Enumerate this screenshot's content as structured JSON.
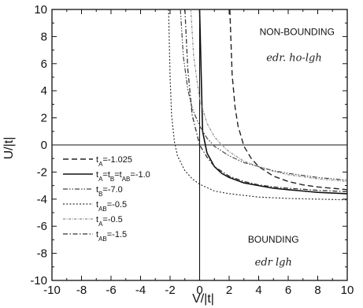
{
  "chart_data": {
    "type": "line",
    "xlabel": "V/|t|",
    "ylabel": "U/|t|",
    "xlim": [
      -10,
      10
    ],
    "ylim": [
      -10,
      10
    ],
    "xticks": [
      "-10",
      "-8",
      "-6",
      "-4",
      "-2",
      "0",
      "2",
      "4",
      "6",
      "8",
      "10"
    ],
    "yticks": [
      "10",
      "8",
      "6",
      "4",
      "2",
      "0",
      "-2",
      "-4",
      "-6",
      "-8",
      "-10"
    ],
    "grid": false,
    "legend_position": "left-middle",
    "annotations": [
      {
        "text": "NON-BOUNDING",
        "x": 6.6,
        "y": 8.1
      },
      {
        "text": "BOUNDING",
        "x": 5.0,
        "y": -7.2
      }
    ],
    "handwriting": [
      {
        "text": "edr. ho-lgh",
        "x": 6.4,
        "y": 6.2
      },
      {
        "text": "edr lgh",
        "x": 5.0,
        "y": -8.9
      }
    ],
    "series": [
      {
        "name": "t_A=-1.025",
        "style": "dashed",
        "x": [
          2.05,
          2.2,
          2.4,
          2.6,
          3.0,
          3.5,
          4.0,
          5.0,
          6.0,
          7.0,
          8.0,
          9.0,
          10.0
        ],
        "y": [
          10.0,
          5.2,
          2.8,
          1.4,
          -0.1,
          -1.0,
          -1.6,
          -2.3,
          -2.7,
          -2.95,
          -3.1,
          -3.2,
          -3.3
        ]
      },
      {
        "name": "t_A=t_B=t_AB=-1.0",
        "style": "solid",
        "x": [
          0.0,
          0.2,
          0.5,
          1.0,
          1.5,
          2.0,
          3.0,
          4.0,
          5.0,
          6.0,
          7.0,
          8.0,
          9.0,
          10.0
        ],
        "y": [
          10.0,
          1.0,
          -0.6,
          -1.6,
          -2.1,
          -2.4,
          -2.8,
          -3.0,
          -3.2,
          -3.3,
          -3.4,
          -3.5,
          -3.55,
          -3.6
        ]
      },
      {
        "name": "t_B=-7.0",
        "style": "dash-dot-dot",
        "x": [
          -1.3,
          -1.1,
          -0.8,
          -0.5,
          0.0,
          0.5,
          1.0,
          2.0,
          3.0,
          4.0,
          5.0,
          6.0,
          8.0,
          10.0
        ],
        "y": [
          10.0,
          6.5,
          4.1,
          2.7,
          1.4,
          0.5,
          -0.1,
          -0.8,
          -1.3,
          -1.6,
          -1.9,
          -2.1,
          -2.4,
          -2.6
        ]
      },
      {
        "name": "t_AB=-0.5",
        "style": "dotted",
        "x": [
          -2.1,
          -2.0,
          -1.9,
          -1.7,
          -1.5,
          -1.0,
          -0.5,
          0.0,
          1.0,
          2.0,
          4.0,
          6.0,
          8.0,
          10.0
        ],
        "y": [
          10.0,
          5.0,
          2.2,
          0.2,
          -0.8,
          -1.9,
          -2.5,
          -2.9,
          -3.4,
          -3.6,
          -3.85,
          -3.95,
          -4.0,
          -4.05
        ]
      },
      {
        "name": "t_A=-0.5",
        "style": "dash-dot-dense",
        "x": [
          -0.6,
          -0.4,
          0.0,
          0.5,
          1.0,
          1.5,
          2.0,
          3.0,
          4.0,
          5.0,
          6.0,
          8.0,
          10.0
        ],
        "y": [
          10.0,
          6.5,
          3.4,
          1.6,
          0.6,
          0.0,
          -0.5,
          -1.2,
          -1.6,
          -1.95,
          -2.2,
          -2.5,
          -2.7
        ]
      },
      {
        "name": "t_AB=-1.5",
        "style": "dash-dot",
        "x": [
          -1.0,
          -0.8,
          -0.5,
          0.0,
          0.5,
          1.0,
          2.0,
          3.0,
          4.0,
          5.0,
          6.0,
          8.0,
          10.0
        ],
        "y": [
          10.0,
          5.6,
          2.2,
          0.0,
          -0.9,
          -1.6,
          -2.3,
          -2.7,
          -2.95,
          -3.1,
          -3.2,
          -3.35,
          -3.45
        ]
      }
    ],
    "legend": [
      {
        "label": "t_A=-1.025",
        "parts": [
          [
            "t",
            ""
          ],
          [
            "A",
            "sub"
          ],
          [
            "=-1.025",
            ""
          ]
        ]
      },
      {
        "label": "t_A=t_B=t_AB=-1.0",
        "parts": [
          [
            "t",
            ""
          ],
          [
            "A",
            "sub"
          ],
          [
            "=t",
            ""
          ],
          [
            "B",
            "sub"
          ],
          [
            "=t",
            ""
          ],
          [
            "AB",
            "sub"
          ],
          [
            "=-1.0",
            ""
          ]
        ]
      },
      {
        "label": "t_B=-7.0",
        "parts": [
          [
            "t",
            ""
          ],
          [
            "B",
            "sub"
          ],
          [
            "=-7.0",
            ""
          ]
        ]
      },
      {
        "label": "t_AB=-0.5",
        "parts": [
          [
            "t",
            ""
          ],
          [
            "AB",
            "sub"
          ],
          [
            "=-0.5",
            ""
          ]
        ]
      },
      {
        "label": "t_A=-0.5",
        "parts": [
          [
            "t",
            ""
          ],
          [
            "A",
            "sub"
          ],
          [
            "=-0.5",
            ""
          ]
        ]
      },
      {
        "label": "t_AB=-1.5",
        "parts": [
          [
            "t",
            ""
          ],
          [
            "AB",
            "sub"
          ],
          [
            "=-1.5",
            ""
          ]
        ]
      }
    ]
  }
}
